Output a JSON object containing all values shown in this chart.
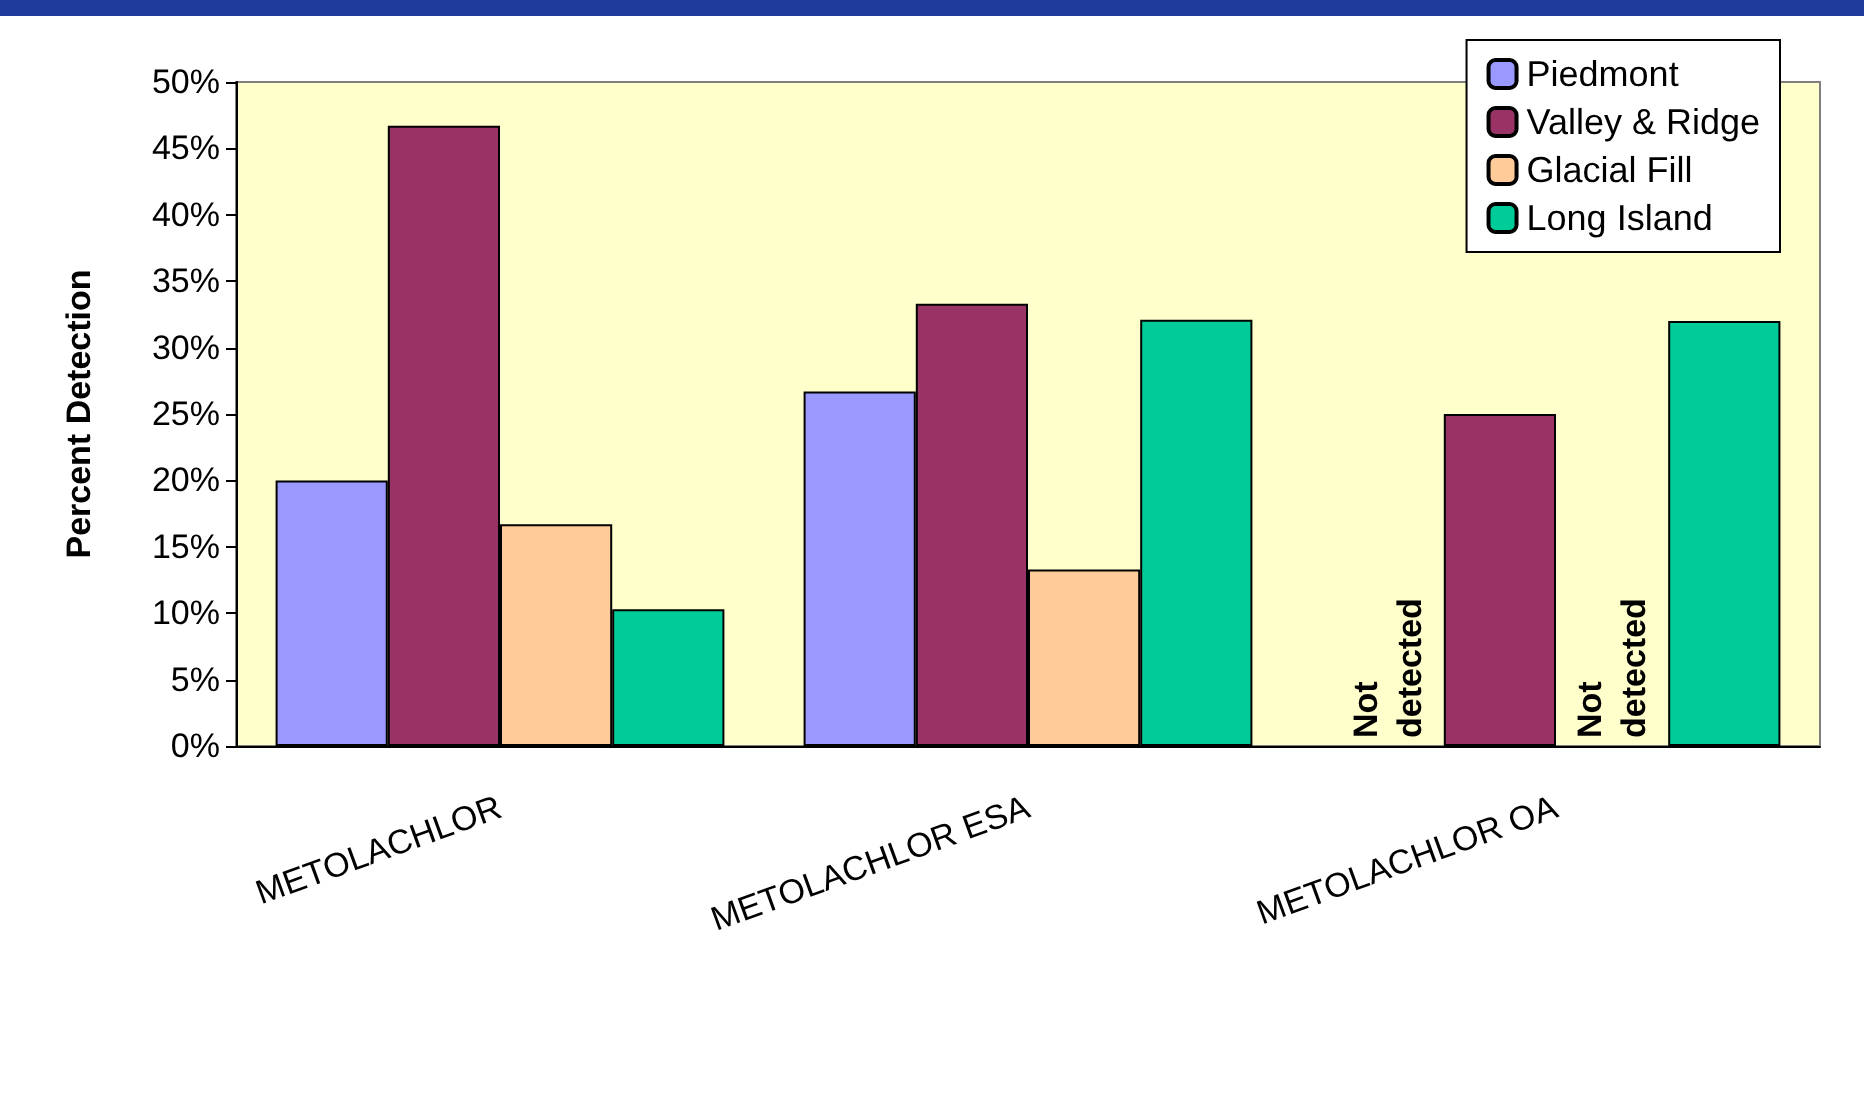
{
  "chart_data": {
    "type": "bar",
    "ylabel": "Percent Detection",
    "categories": [
      "METOLACHLOR",
      "METOLACHLOR ESA",
      "METOLACHLOR OA"
    ],
    "series": [
      {
        "name": "Piedmont",
        "color": "#9999ff",
        "values": [
          20,
          26.7,
          null
        ]
      },
      {
        "name": "Valley & Ridge",
        "color": "#993366",
        "values": [
          46.7,
          33.3,
          25
        ]
      },
      {
        "name": "Glacial Fill",
        "color": "#ffcc99",
        "values": [
          16.7,
          13.3,
          null
        ]
      },
      {
        "name": "Long Island",
        "color": "#00cc99",
        "values": [
          10.3,
          32.1,
          32
        ]
      }
    ],
    "ylim": [
      0,
      50
    ],
    "yticks": [
      {
        "value": 0,
        "label": "0%"
      },
      {
        "value": 5,
        "label": "5%"
      },
      {
        "value": 10,
        "label": "10%"
      },
      {
        "value": 15,
        "label": "15%"
      },
      {
        "value": 20,
        "label": "20%"
      },
      {
        "value": 25,
        "label": "25%"
      },
      {
        "value": 30,
        "label": "30%"
      },
      {
        "value": 35,
        "label": "35%"
      },
      {
        "value": 40,
        "label": "40%"
      },
      {
        "value": 45,
        "label": "45%"
      },
      {
        "value": 50,
        "label": "50%"
      }
    ],
    "annotations": [
      "Not detected",
      "Not detected"
    ],
    "grid": false,
    "legend": "top right"
  }
}
